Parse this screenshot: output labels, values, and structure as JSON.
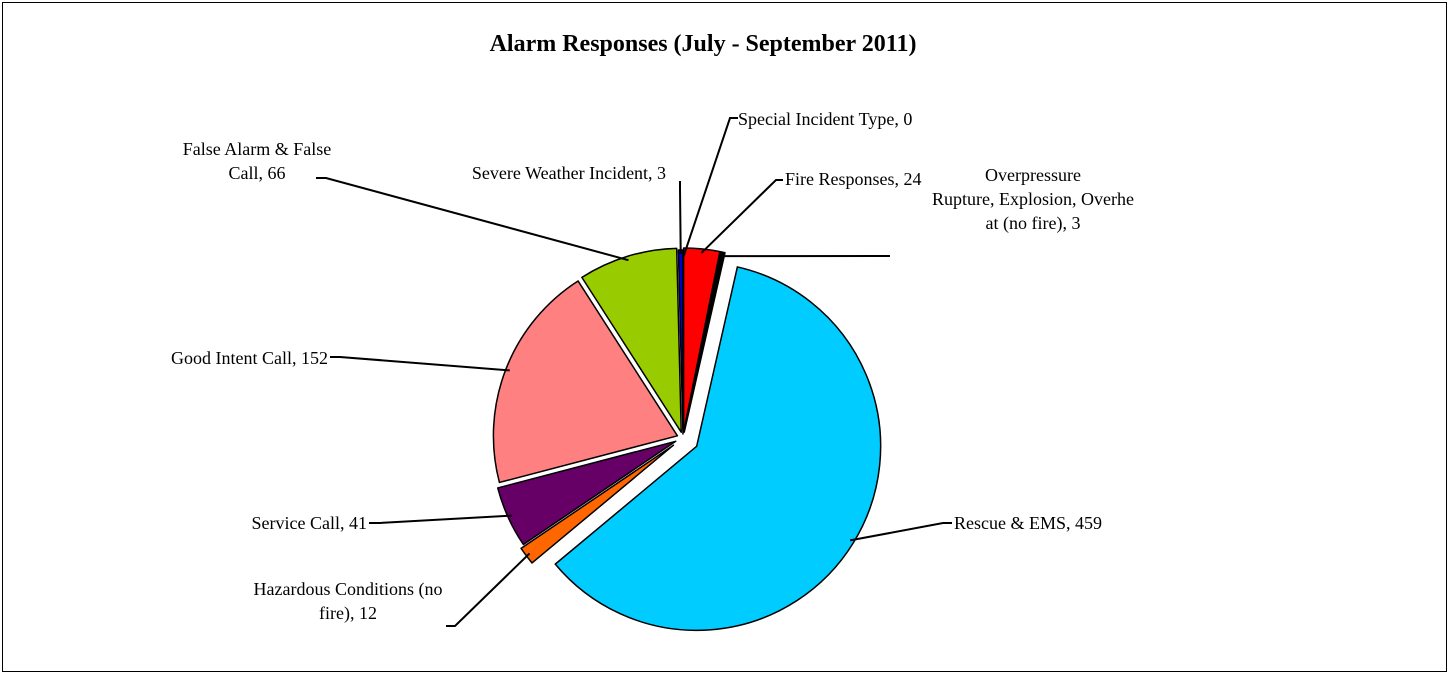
{
  "chart_data": {
    "type": "pie",
    "title": "Alarm Responses (July - September 2011)",
    "slices": [
      {
        "name": "Special Incident Type",
        "value": 0,
        "color": "#ffff00"
      },
      {
        "name": "Fire Responses",
        "value": 24,
        "color": "#ff0000"
      },
      {
        "name": "Overpressure Rupture, Explosion, Overheat (no fire)",
        "value": 3,
        "color": "#000000"
      },
      {
        "name": "Rescue & EMS",
        "value": 459,
        "color": "#00ccff"
      },
      {
        "name": "Hazardous Conditions (no fire)",
        "value": 12,
        "color": "#ff6600"
      },
      {
        "name": "Service Call",
        "value": 41,
        "color": "#660066"
      },
      {
        "name": "Good Intent Call",
        "value": 152,
        "color": "#ff8080"
      },
      {
        "name": "False Alarm & False Call",
        "value": 66,
        "color": "#99cc00"
      },
      {
        "name": "Severe Weather Incident",
        "value": 3,
        "color": "#0000cc"
      }
    ],
    "data_labels": [
      {
        "lines": [
          "Special Incident Type, 0"
        ]
      },
      {
        "lines": [
          "Fire Responses, 24"
        ]
      },
      {
        "lines": [
          "Overpressure",
          "Rupture, Explosion, Overhe",
          "at (no fire), 3"
        ]
      },
      {
        "lines": [
          "Rescue & EMS, 459"
        ]
      },
      {
        "lines": [
          "Hazardous Conditions (no",
          "fire), 12"
        ]
      },
      {
        "lines": [
          "Service Call, 41"
        ]
      },
      {
        "lines": [
          "Good Intent Call, 152"
        ]
      },
      {
        "lines": [
          "False Alarm & False",
          "Call, 66"
        ]
      },
      {
        "lines": [
          "Severe Weather Incident, 3"
        ]
      }
    ]
  }
}
